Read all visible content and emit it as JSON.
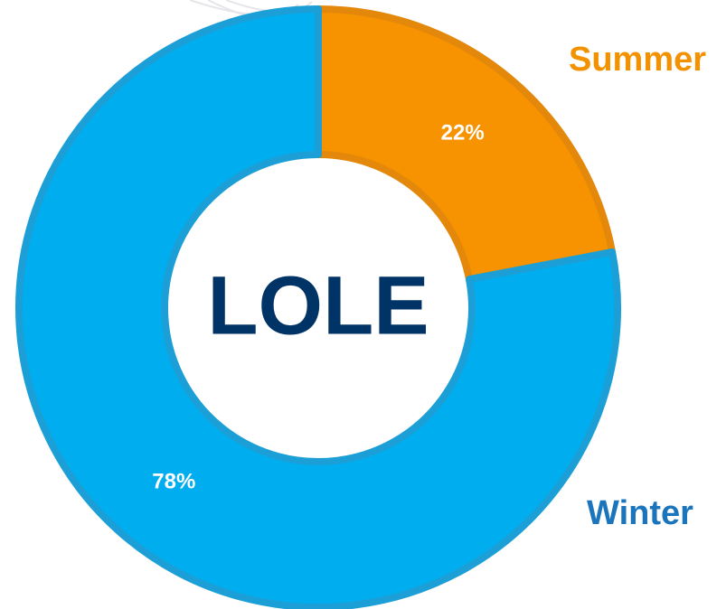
{
  "chart_data": {
    "type": "donut",
    "center_label": "LOLE",
    "categories": [
      "Summer",
      "Winter"
    ],
    "values": [
      22,
      78
    ],
    "value_labels": [
      "22%",
      "78%"
    ],
    "colors": [
      "#f79300",
      "#00aeef"
    ],
    "stroke_colors": [
      "#e3880a",
      "#1b9fd6"
    ],
    "label_colors": [
      "#f39200",
      "#1b75bc"
    ],
    "center_label_color": "#003366"
  }
}
